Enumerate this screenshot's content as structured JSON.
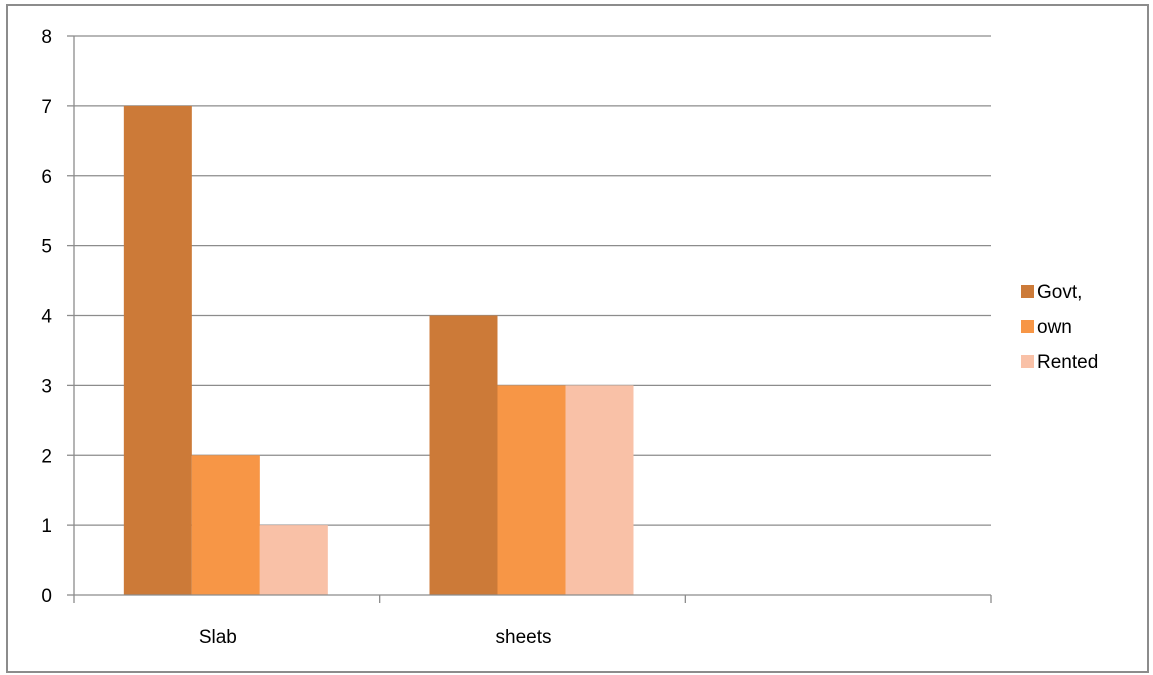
{
  "chart_data": {
    "type": "bar",
    "categories": [
      "Slab",
      "sheets",
      ""
    ],
    "series": [
      {
        "name": "Govt,",
        "values": [
          7,
          4,
          null
        ],
        "color": "#cc7a38"
      },
      {
        "name": "own",
        "values": [
          2,
          3,
          null
        ],
        "color": "#f79646"
      },
      {
        "name": "Rented",
        "values": [
          1,
          3,
          null
        ],
        "color": "#f9c1a7"
      }
    ],
    "title": "",
    "xlabel": "",
    "ylabel": "",
    "ylim": [
      0,
      8
    ],
    "yticks": [
      0,
      1,
      2,
      3,
      4,
      5,
      6,
      7,
      8
    ],
    "grid": true,
    "legend_position": "right"
  }
}
